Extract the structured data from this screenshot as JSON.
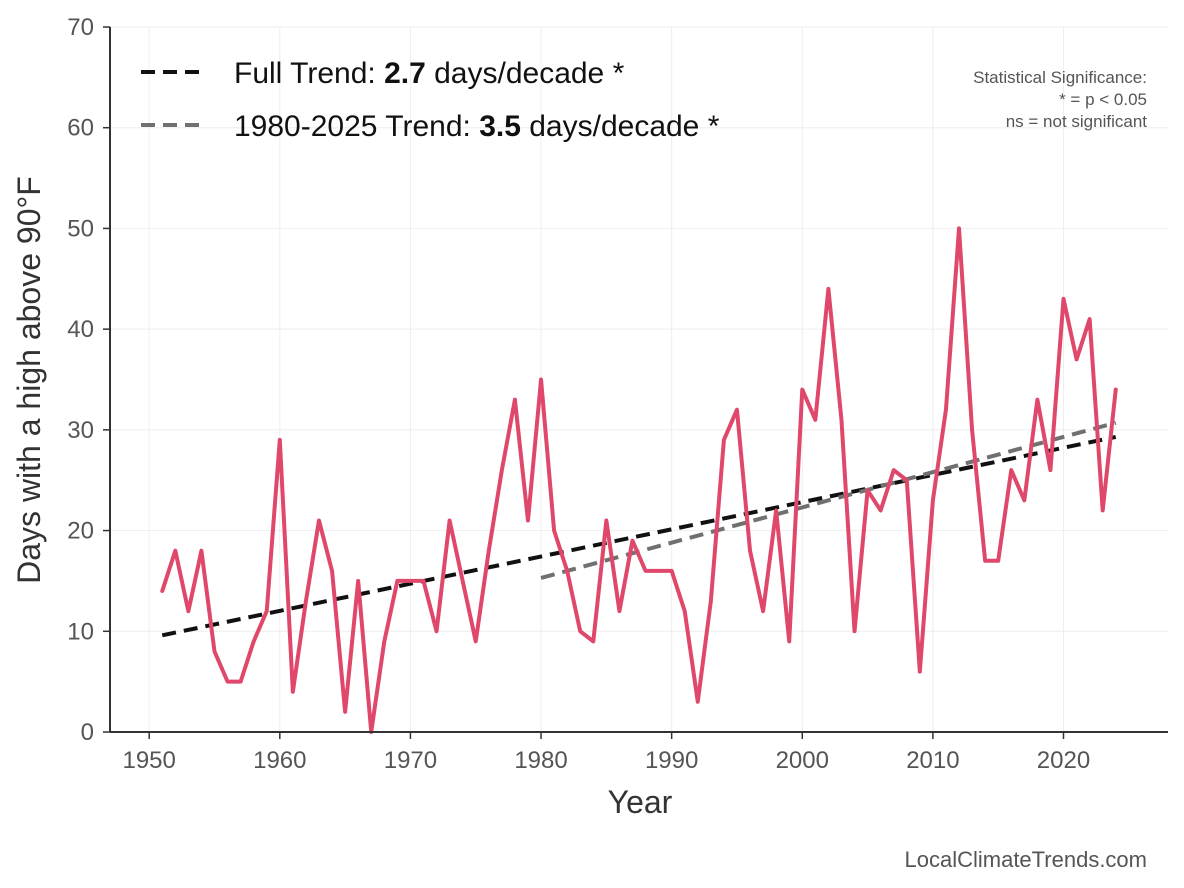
{
  "chart_data": {
    "type": "line",
    "xlabel": "Year",
    "ylabel": "Days with a high above 90°F",
    "xlim": [
      1947,
      2028
    ],
    "ylim": [
      0,
      70
    ],
    "x_ticks": [
      1950,
      1960,
      1970,
      1980,
      1990,
      2000,
      2010,
      2020
    ],
    "y_ticks": [
      0,
      10,
      20,
      30,
      40,
      50,
      60,
      70
    ],
    "grid": true,
    "series": [
      {
        "color": "#e0486b",
        "x": [
          1951,
          1952,
          1953,
          1954,
          1955,
          1956,
          1957,
          1958,
          1959,
          1960,
          1961,
          1962,
          1963,
          1964,
          1965,
          1966,
          1967,
          1968,
          1969,
          1970,
          1971,
          1972,
          1973,
          1974,
          1975,
          1976,
          1977,
          1978,
          1979,
          1980,
          1981,
          1982,
          1983,
          1984,
          1985,
          1986,
          1987,
          1988,
          1989,
          1990,
          1991,
          1992,
          1993,
          1994,
          1995,
          1996,
          1997,
          1998,
          1999,
          2000,
          2001,
          2002,
          2003,
          2004,
          2005,
          2006,
          2007,
          2008,
          2009,
          2010,
          2011,
          2012,
          2013,
          2014,
          2015,
          2016,
          2017,
          2018,
          2019,
          2020,
          2021,
          2022,
          2023,
          2024
        ],
        "values": [
          14,
          18,
          12,
          18,
          8,
          5,
          5,
          9,
          12,
          29,
          4,
          13,
          21,
          16,
          2,
          15,
          0,
          9,
          15,
          15,
          15,
          10,
          21,
          15,
          9,
          18,
          26,
          33,
          21,
          35,
          20,
          16,
          10,
          9,
          21,
          12,
          19,
          16,
          16,
          16,
          12,
          3,
          13,
          29,
          32,
          18,
          12,
          22,
          9,
          34,
          31,
          44,
          31,
          10,
          24,
          22,
          26,
          25,
          6,
          23,
          32,
          50,
          30,
          17,
          17,
          26,
          23,
          33,
          26,
          43,
          37,
          41,
          22,
          34
        ]
      }
    ],
    "trend_lines": [
      {
        "color": "#111111",
        "x": [
          1951,
          2024
        ],
        "values": [
          9.6,
          29.3
        ]
      },
      {
        "color": "#707070",
        "x": [
          1980,
          2024
        ],
        "values": [
          15.3,
          30.7
        ]
      }
    ],
    "legend": {
      "placement": "top-left",
      "entries": [
        {
          "prefix": "Full Trend: ",
          "value": "2.7",
          "suffix": " days/decade *",
          "color": "#111111"
        },
        {
          "prefix": "1980-2025 Trend: ",
          "value": "3.5",
          "suffix": " days/decade *",
          "color": "#707070"
        }
      ]
    },
    "annotation": {
      "lines": [
        "Statistical Significance:",
        "* = p < 0.05",
        "ns = not significant"
      ],
      "placement": "top-right"
    }
  },
  "credit": "LocalClimateTrends.com"
}
